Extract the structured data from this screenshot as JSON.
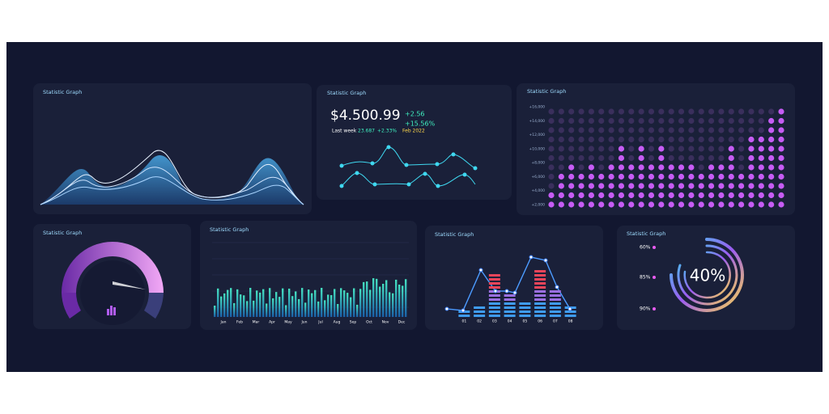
{
  "panels": [
    {
      "title": "Statistic Graph"
    },
    {
      "title": "Statistic Graph"
    },
    {
      "title": "Statistic Graph"
    },
    {
      "title": "Statistic Graph"
    },
    {
      "title": "Statistic Graph"
    },
    {
      "title": "Statistic Graph"
    },
    {
      "title": "Statistic Graph"
    }
  ],
  "finance": {
    "amount": "$4.500.99",
    "change": "+2.56",
    "percent": "+15.56%",
    "last_week_label": "Last week",
    "last_week_value": "23.687",
    "last_week_change": "+2.33%",
    "date": "Feb 2022"
  },
  "dot_chart": {
    "type": "dot-column",
    "color": "#c65cf4",
    "ylim": [
      2000,
      16000
    ],
    "yticks": [
      {
        "value": 2000,
        "label": "+2,000"
      },
      {
        "value": 4000,
        "label": "+4,000"
      },
      {
        "value": 6000,
        "label": "+6,000"
      },
      {
        "value": 8000,
        "label": "+8,000"
      },
      {
        "value": 10000,
        "label": "+10,000"
      },
      {
        "value": 12000,
        "label": "+12,000"
      },
      {
        "value": 14000,
        "label": "+14,000"
      },
      {
        "value": 16000,
        "label": "+16,000"
      }
    ],
    "values": [
      4000,
      6000,
      8500,
      6500,
      8500,
      6500,
      8000,
      11000,
      8500,
      11000,
      8500,
      11000,
      8500,
      8000,
      8000,
      7000,
      8000,
      8500,
      10000,
      7000,
      11500,
      12500,
      14000,
      15500
    ]
  },
  "month_chart": {
    "categories": [
      "Jan",
      "Feb",
      "Mar",
      "Apr",
      "May",
      "Jun",
      "Jul",
      "Aug",
      "Sep",
      "Oct",
      "Nov",
      "Dec"
    ]
  },
  "step_chart": {
    "categories": [
      "01",
      "02",
      "03",
      "04",
      "05",
      "06",
      "07",
      "08"
    ]
  },
  "radial": {
    "center": "40%",
    "labels": [
      "60%",
      "85%",
      "90%"
    ]
  }
}
